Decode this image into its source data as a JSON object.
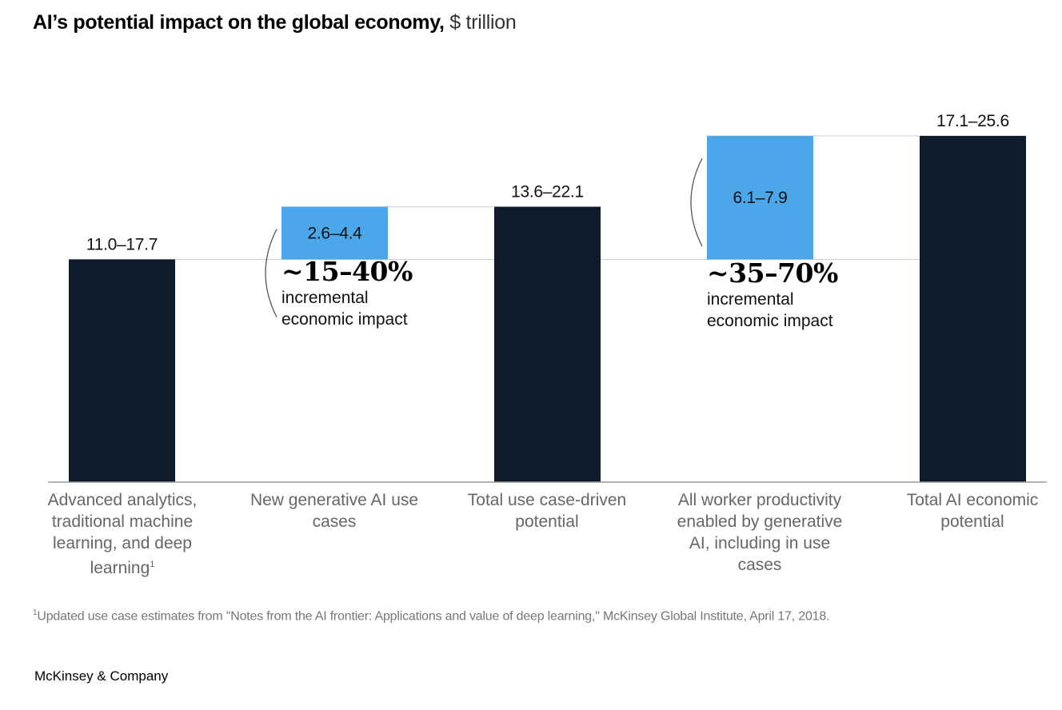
{
  "header": {
    "title_bold": "AI’s potential impact on the global economy,",
    "title_unit": "$ trillion"
  },
  "chart_data": {
    "type": "waterfall",
    "title": "AI’s potential impact on the global economy, $ trillion",
    "unit": "$ trillion",
    "categories": [
      "Advanced analytics, traditional machine learning, and deep learning",
      "New generative AI use cases",
      "Total use case-driven potential",
      "All worker productivity enabled by generative AI, including in use cases",
      "Total AI economic potential"
    ],
    "bars": [
      {
        "kind": "total",
        "base": 0,
        "value": 11.0,
        "label": "11.0–17.7"
      },
      {
        "kind": "increment",
        "base": 11.0,
        "value": 2.6,
        "label": "2.6–4.4"
      },
      {
        "kind": "total",
        "base": 0,
        "value": 13.6,
        "label": "13.6–22.1"
      },
      {
        "kind": "increment",
        "base": 11.0,
        "value": 6.1,
        "label": "6.1–7.9"
      },
      {
        "kind": "total",
        "base": 0,
        "value": 17.1,
        "label": "17.1–25.6"
      }
    ],
    "ylim": [
      0,
      17.1
    ],
    "colors": {
      "total": "#0e1b2a",
      "increment": "#4ba6ea",
      "connector": "#cfcfcf",
      "axis": "#999999"
    },
    "annotations": [
      {
        "bar_index": 1,
        "big": "~15–40%",
        "line1": "incremental",
        "line2": "economic impact"
      },
      {
        "bar_index": 3,
        "big": "~35–70%",
        "line1": "incremental",
        "line2": "economic impact"
      }
    ]
  },
  "category_labels": {
    "c0_text": "Advanced analytics, traditional machine learning, and deep learning",
    "c0_sup": "1",
    "c1": "New generative AI use cases",
    "c2": "Total use case-driven potential",
    "c3": "All worker productivity enabled by generative AI, including in use cases",
    "c4": "Total AI economic potential"
  },
  "footnote": {
    "marker": "1",
    "text": "Updated use case estimates from \"Notes from the AI frontier: Applications and value of deep learning,\" McKinsey Global Institute, April 17, 2018."
  },
  "brand": "McKinsey & Company"
}
